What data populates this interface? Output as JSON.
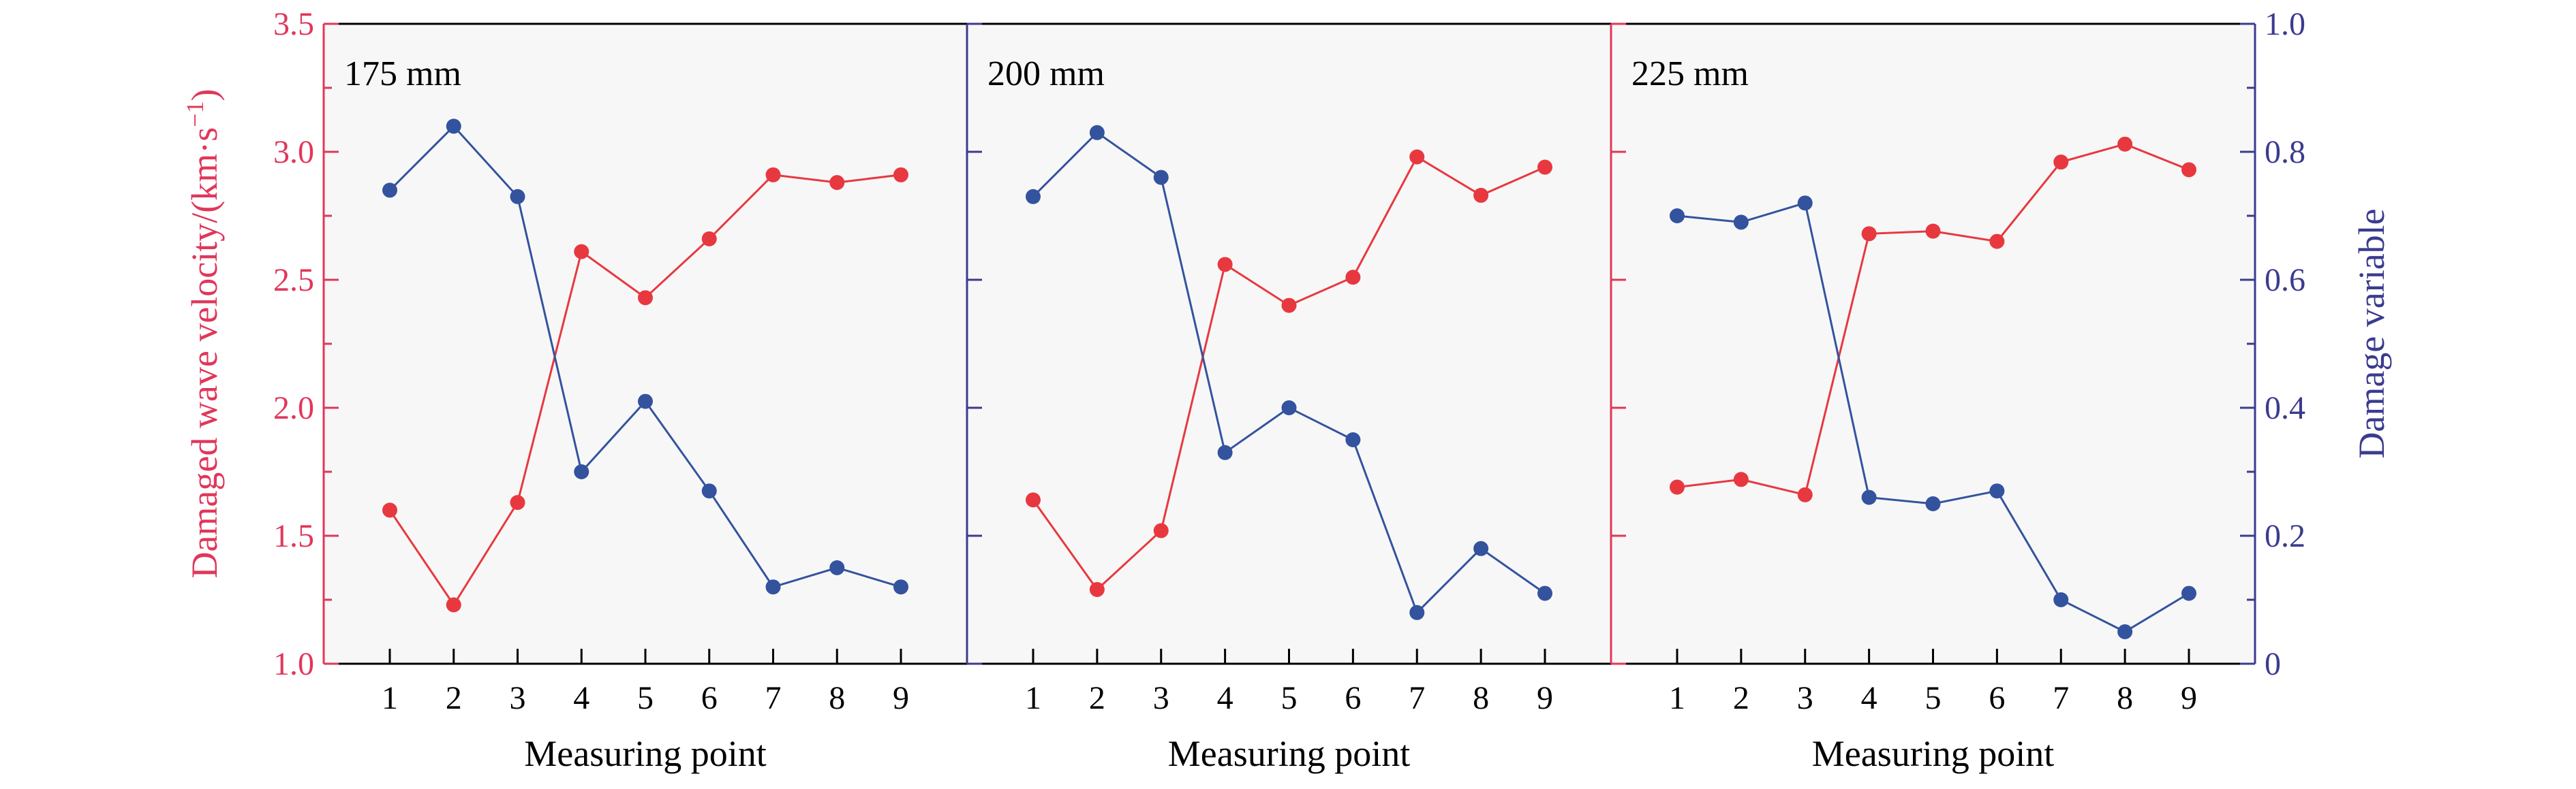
{
  "colors": {
    "velocity": "#e8383f",
    "damage": "#33539e",
    "left_axis": "#e0375a",
    "right_axis": "#3b3b8f",
    "panel_bg": "#f7f7f7",
    "text": "#000000"
  },
  "chart_data": {
    "type": "line",
    "x": [
      1,
      2,
      3,
      4,
      5,
      6,
      7,
      8,
      9
    ],
    "xlabel": "Measuring point",
    "ylabel_left": "Damaged wave velocity/(km·s",
    "ylabel_left_exp": "−1",
    "ylabel_left_close": ")",
    "ylabel_right": "Damage variable",
    "ylim_left": [
      1.0,
      3.5
    ],
    "ylim_right": [
      0,
      1.0
    ],
    "left_ticks": [
      "1.0",
      "1.5",
      "2.0",
      "2.5",
      "3.0",
      "3.5"
    ],
    "right_ticks": [
      "0",
      "0.2",
      "0.4",
      "0.6",
      "0.8",
      "1.0"
    ],
    "x_ticks": [
      "1",
      "2",
      "3",
      "4",
      "5",
      "6",
      "7",
      "8",
      "9"
    ],
    "panels": [
      {
        "label": "175 mm",
        "velocity": [
          1.6,
          1.23,
          1.63,
          2.61,
          2.43,
          2.66,
          2.91,
          2.88,
          2.91
        ],
        "damage": [
          0.74,
          0.84,
          0.73,
          0.3,
          0.41,
          0.27,
          0.12,
          0.15,
          0.12
        ]
      },
      {
        "label": "200 mm",
        "velocity": [
          1.64,
          1.29,
          1.52,
          2.56,
          2.4,
          2.51,
          2.98,
          2.83,
          2.94
        ],
        "damage": [
          0.73,
          0.83,
          0.76,
          0.33,
          0.4,
          0.35,
          0.08,
          0.18,
          0.11
        ]
      },
      {
        "label": "225 mm",
        "velocity": [
          1.69,
          1.72,
          1.66,
          2.68,
          2.69,
          2.65,
          2.96,
          3.03,
          2.93
        ],
        "damage": [
          0.7,
          0.69,
          0.72,
          0.26,
          0.25,
          0.27,
          0.1,
          0.05,
          0.11
        ]
      }
    ]
  }
}
